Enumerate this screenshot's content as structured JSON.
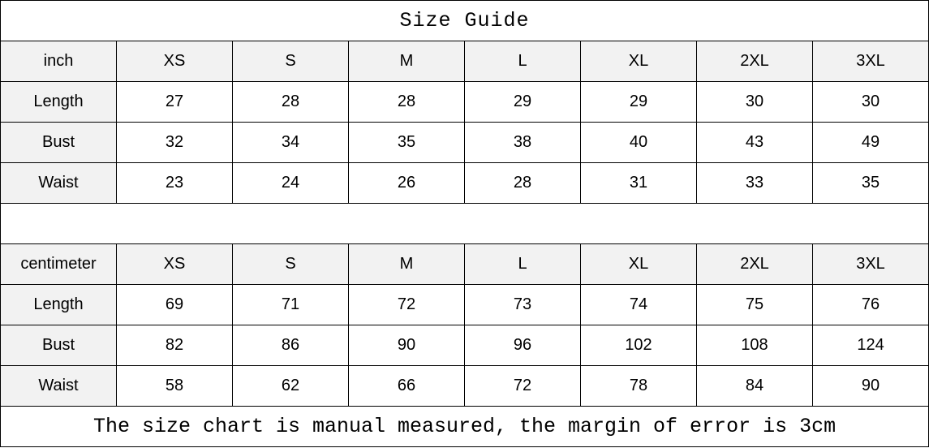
{
  "title": "Size Guide",
  "inch_table": {
    "unit": "inch",
    "sizes": [
      "XS",
      "S",
      "M",
      "L",
      "XL",
      "2XL",
      "3XL"
    ],
    "rows": [
      {
        "label": "Length",
        "values": [
          "27",
          "28",
          "28",
          "29",
          "29",
          "30",
          "30"
        ]
      },
      {
        "label": "Bust",
        "values": [
          "32",
          "34",
          "35",
          "38",
          "40",
          "43",
          "49"
        ]
      },
      {
        "label": "Waist",
        "values": [
          "23",
          "24",
          "26",
          "28",
          "31",
          "33",
          "35"
        ]
      }
    ]
  },
  "cm_table": {
    "unit": "centimeter",
    "sizes": [
      "XS",
      "S",
      "M",
      "L",
      "XL",
      "2XL",
      "3XL"
    ],
    "rows": [
      {
        "label": "Length",
        "values": [
          "69",
          "71",
          "72",
          "73",
          "74",
          "75",
          "76"
        ]
      },
      {
        "label": "Bust",
        "values": [
          "82",
          "86",
          "90",
          "96",
          "102",
          "108",
          "124"
        ]
      },
      {
        "label": "Waist",
        "values": [
          "58",
          "62",
          "66",
          "72",
          "78",
          "84",
          "90"
        ]
      }
    ]
  },
  "footer": "The size chart is manual measured, the margin of error is 3cm",
  "colors": {
    "header_bg": "#f2f2f2",
    "border": "#000000"
  }
}
